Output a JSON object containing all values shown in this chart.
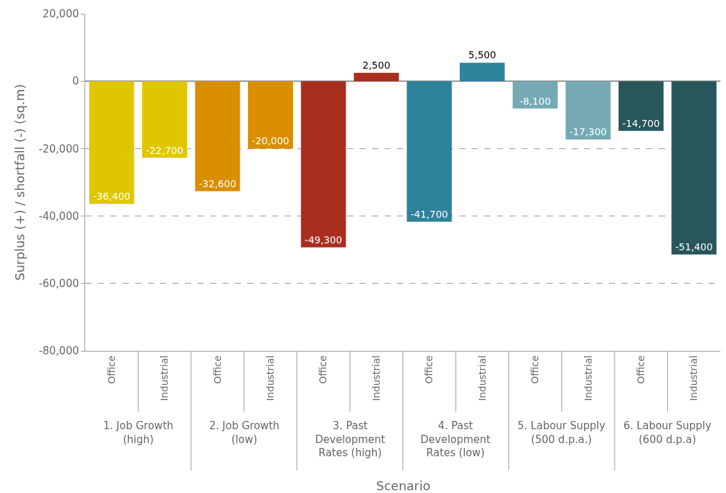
{
  "chart_data": {
    "type": "bar",
    "ylabel": "Surplus (+) / shortfall (-) (sq.m)",
    "categories": [
      "Office",
      "Industrial",
      "Office",
      "Industrial",
      "Office",
      "Industrial",
      "Office",
      "Industrial",
      "Office",
      "Industrial",
      "Office",
      "Industrial"
    ],
    "values": [
      -36400,
      -22700,
      -32600,
      -20000,
      -49300,
      2500,
      -41700,
      5500,
      -8100,
      -17300,
      -14700,
      -51400
    ],
    "value_labels": [
      "-36,400",
      "-22,700",
      "-32,600",
      "-20,000",
      "-49,300",
      "2,500",
      "-41,700",
      "5,500",
      "-8,100",
      "-17,300",
      "-14,700",
      "-51,400"
    ],
    "colors": [
      "#dfc700",
      "#dfc700",
      "#d98f00",
      "#d98f00",
      "#a82f20",
      "#a82f20",
      "#2e829c",
      "#2e829c",
      "#75aab5",
      "#75aab5",
      "#28565a",
      "#28565a"
    ],
    "annotations": [
      "1. Job Growth\n(high)",
      "2. Job Growth\n(low)",
      "3. Past\nDevelopment\nRates (high)",
      "4. Past\nDevelopment\nRates (low)",
      "5. Labour Supply\n(500 d.p.a.)",
      "6. Labour Supply\n(600 d.p.a)",
      "Scenario"
    ],
    "ylim": [
      -80000,
      20000
    ],
    "yticks": [
      {
        "value": -80000,
        "label": "-80,000"
      },
      {
        "value": -60000,
        "label": "-60,000"
      },
      {
        "value": -40000,
        "label": "-40,000"
      },
      {
        "value": -20000,
        "label": "-20,000"
      },
      {
        "value": 0,
        "label": "0"
      },
      {
        "value": 20000,
        "label": "20,000"
      }
    ],
    "grid": "y",
    "line_style": "dashed"
  }
}
